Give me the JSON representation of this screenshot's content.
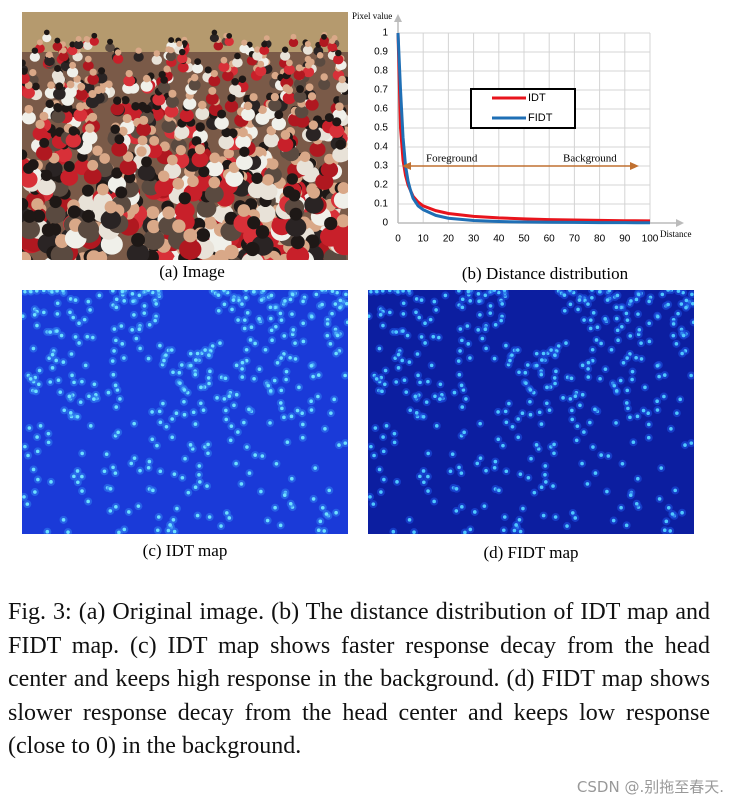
{
  "figure": {
    "captions": {
      "a": "(a) Image",
      "b": "(b) Distance distribution",
      "c": "(c) IDT map",
      "d": "(d) FIDT map"
    },
    "caption": "Fig. 3: (a) Original image. (b) The distance distribution of IDT map and FIDT map. (c) IDT map shows faster response decay from the head center and keeps high response in the background. (d) FIDT map shows slower response decay from the head center and keeps low response (close to 0) in the background.",
    "watermark": "CSDN @.别拖至春天."
  },
  "chart_data": {
    "type": "line",
    "y_label": "Pixel value",
    "x_label": "Distance",
    "x": [
      0,
      1,
      2,
      3,
      4,
      5,
      6,
      8,
      10,
      15,
      20,
      30,
      40,
      50,
      60,
      70,
      80,
      90,
      100
    ],
    "series": [
      {
        "name": "IDT",
        "color": "#e8141c",
        "values": [
          1,
          0.5,
          0.33,
          0.25,
          0.2,
          0.17,
          0.14,
          0.11,
          0.09,
          0.065,
          0.05,
          0.035,
          0.027,
          0.022,
          0.018,
          0.016,
          0.014,
          0.012,
          0.011
        ]
      },
      {
        "name": "FIDT",
        "color": "#1f6fb5",
        "values": [
          1,
          0.7,
          0.45,
          0.3,
          0.22,
          0.17,
          0.13,
          0.09,
          0.07,
          0.04,
          0.025,
          0.013,
          0.008,
          0.005,
          0.004,
          0.003,
          0.002,
          0.002,
          0.001
        ]
      }
    ],
    "xlim": [
      0,
      100
    ],
    "xticks": [
      0,
      10,
      20,
      30,
      40,
      50,
      60,
      70,
      80,
      90,
      100
    ],
    "ylim": [
      0,
      1
    ],
    "yticks": [
      0,
      0.1,
      0.2,
      0.3,
      0.4,
      0.5,
      0.6,
      0.7,
      0.8,
      0.9,
      1
    ],
    "grid": true,
    "annotations": [
      "Foreground",
      "Background"
    ]
  }
}
